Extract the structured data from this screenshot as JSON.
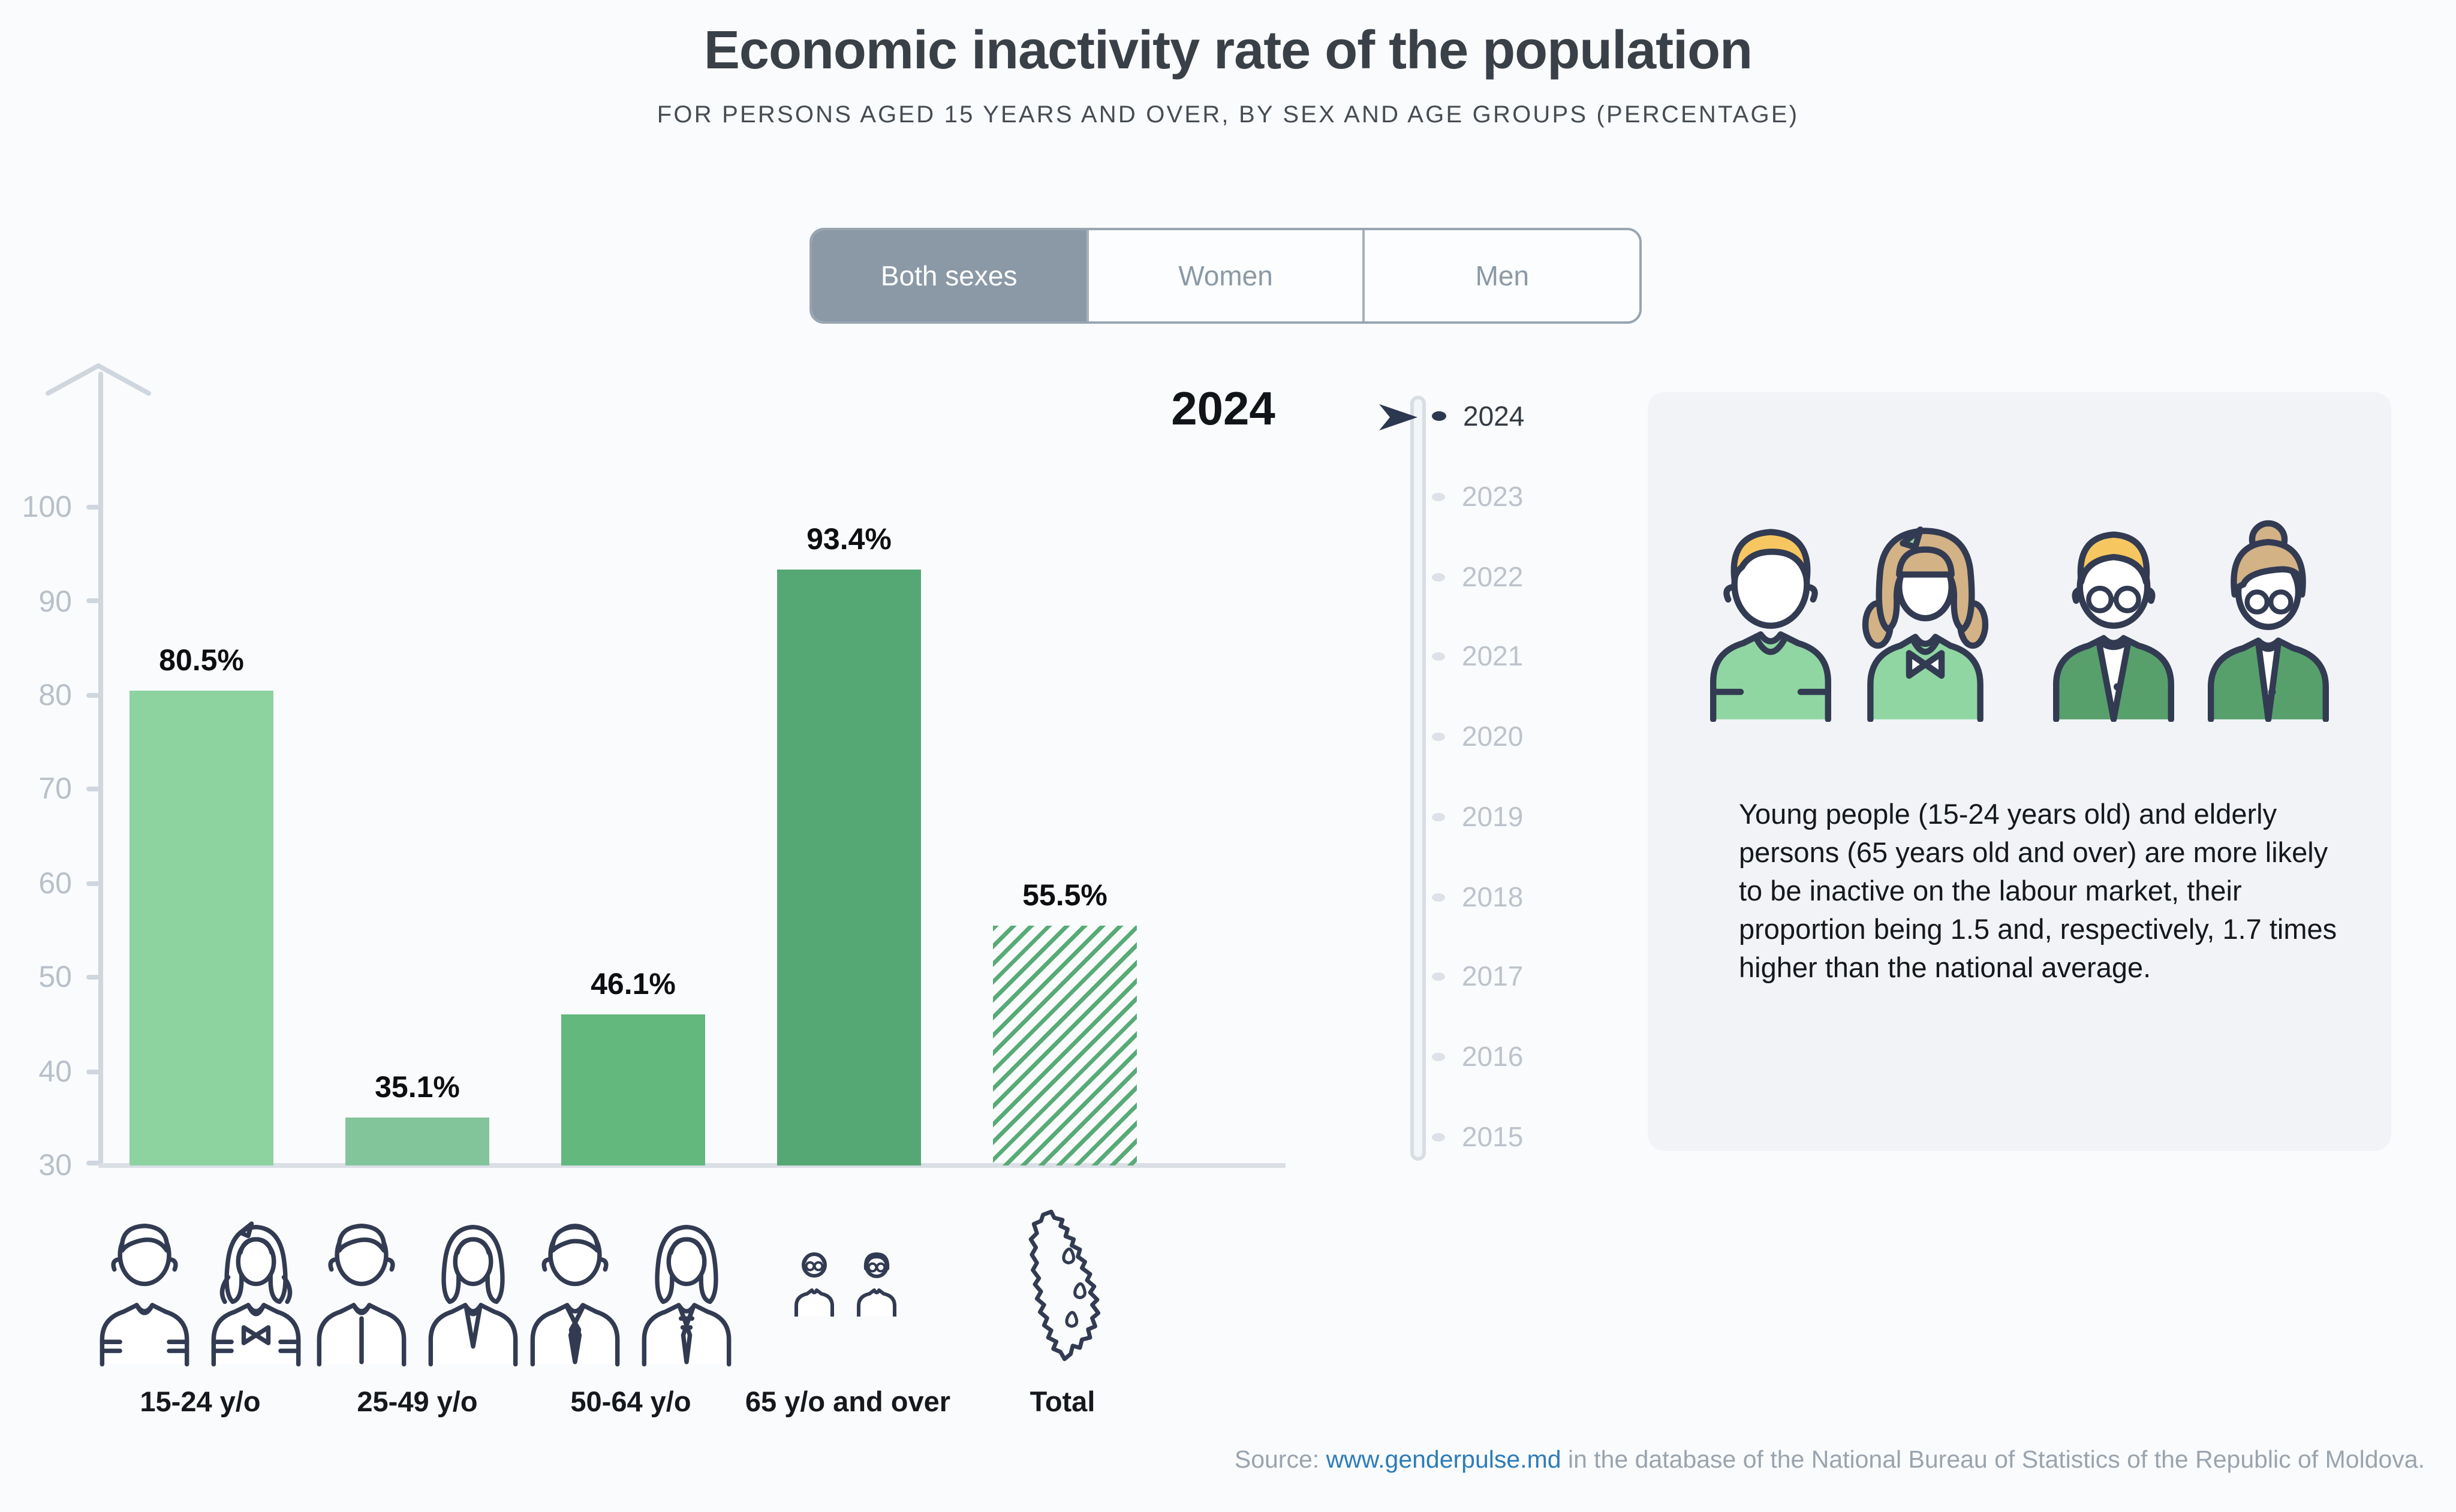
{
  "title": "Economic inactivity rate of the population",
  "subtitle": "FOR PERSONS AGED 15 YEARS AND OVER, BY SEX AND AGE GROUPS (PERCENTAGE)",
  "sex_tabs": [
    {
      "label": "Both sexes",
      "selected": true
    },
    {
      "label": "Women",
      "selected": false
    },
    {
      "label": "Men",
      "selected": false
    }
  ],
  "chart_data": {
    "type": "bar",
    "title": "Economic inactivity rate of the population",
    "subtitle": "For persons aged 15 years and over, by sex and age groups (percentage)",
    "year": "2024",
    "categories": [
      "15-24 y/o",
      "25-49 y/o",
      "50-64 y/o",
      "65 y/o and over",
      "Total"
    ],
    "values": [
      80.5,
      35.1,
      46.1,
      93.4,
      55.5
    ],
    "value_labels": [
      "80.5%",
      "35.1%",
      "46.1%",
      "93.4%",
      "55.5%"
    ],
    "xlabel": "",
    "ylabel": "",
    "ylim": [
      30,
      100
    ],
    "yticks": [
      100,
      90,
      80,
      70,
      60,
      50,
      40,
      30
    ],
    "grid": false,
    "legend_position": "none",
    "bar_colors": [
      "#8cd3a0",
      "#83c59b",
      "#62b87d",
      "#55a873",
      "hatch"
    ],
    "hatch_color": "#58ab77"
  },
  "timeline": {
    "selected_year": "2024",
    "years": [
      "2024",
      "2023",
      "2022",
      "2021",
      "2020",
      "2019",
      "2018",
      "2017",
      "2016",
      "2015"
    ]
  },
  "info_panel": {
    "text": "Young people (15-24 years old) and elderly persons (65 years old and over) are more likely to be inactive on the labour market, their proportion being 1.5 and, respectively, 1.7 times higher than the national average."
  },
  "source": {
    "prefix": "Source: ",
    "link": "www.genderpulse.md",
    "suffix": " in the database of the National Bureau of Statistics of the Republic of Moldova."
  },
  "icons": {
    "timeline_cursor": "right-arrow-cursor",
    "y_axis": "up-arrow",
    "categories": [
      "young-man-and-woman",
      "adult-man-and-woman",
      "older-man-and-woman-in-suits",
      "elderly-couple-small",
      "moldova-map"
    ],
    "info_avatars": [
      "boy",
      "girl",
      "elderly-man-glasses",
      "elderly-woman-glasses"
    ]
  },
  "colors": {
    "accent_navy": "#2c3850",
    "toggle_selected_bg": "#8b99a6",
    "link_blue": "#2c7cba",
    "icon_outline": "#323b52"
  }
}
